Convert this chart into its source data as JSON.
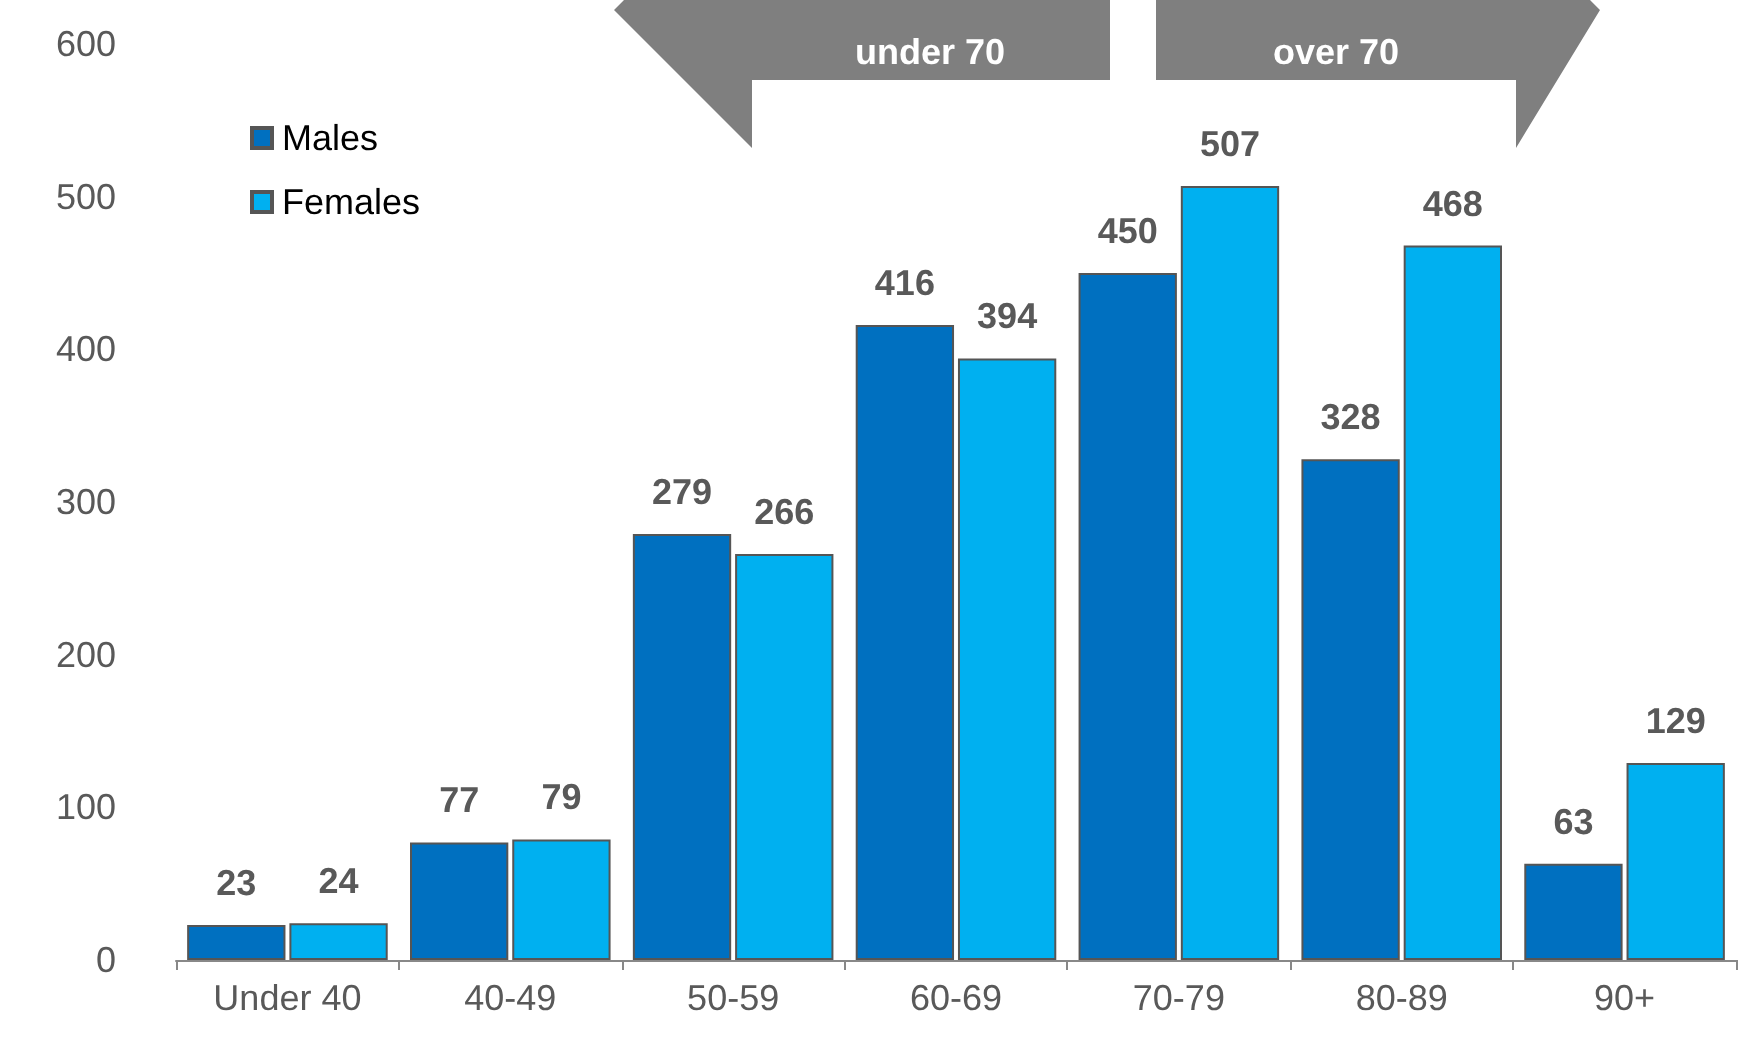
{
  "chart_data": {
    "type": "bar",
    "categories": [
      "Under 40",
      "40-49",
      "50-59",
      "60-69",
      "70-79",
      "80-89",
      "90+"
    ],
    "series": [
      {
        "name": "Males",
        "color": "#0070c0",
        "values": [
          23,
          77,
          279,
          416,
          450,
          328,
          63
        ]
      },
      {
        "name": "Females",
        "color": "#00b0f0",
        "values": [
          24,
          79,
          266,
          394,
          507,
          468,
          129
        ]
      }
    ],
    "ylim": [
      0,
      600
    ],
    "yticks": [
      0,
      100,
      200,
      300,
      400,
      500,
      600
    ],
    "grid": false,
    "legend": "top left",
    "data_labels": true,
    "annotations": [
      "under 70",
      "over 70"
    ]
  }
}
